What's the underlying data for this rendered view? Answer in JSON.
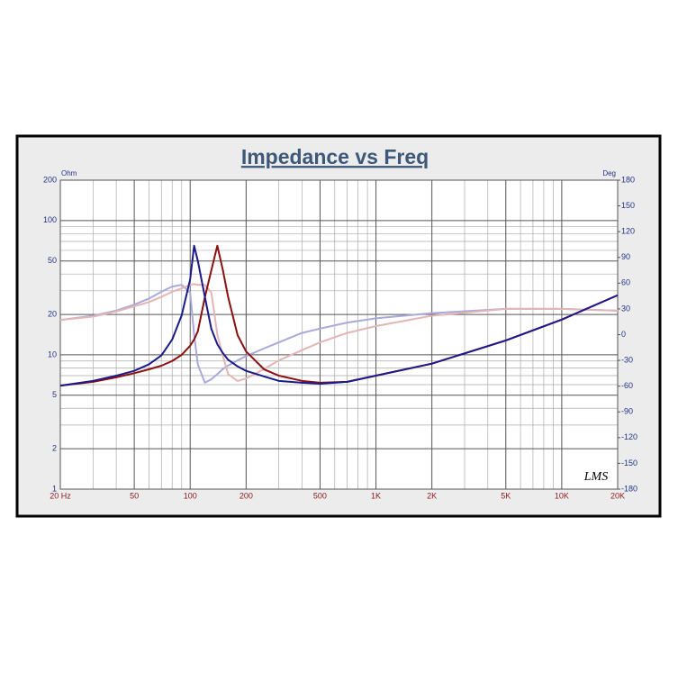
{
  "chart_data": {
    "type": "line",
    "title": "Impedance vs Freq",
    "y_label": "Ohm",
    "y2_label": "Deg",
    "logo": "LMS",
    "x_log": true,
    "y_log": true,
    "grid": true,
    "x": [
      20,
      30,
      40,
      50,
      60,
      70,
      80,
      90,
      100,
      105,
      110,
      120,
      130,
      140,
      150,
      160,
      180,
      200,
      250,
      300,
      400,
      500,
      700,
      1000,
      2000,
      5000,
      10000,
      20000
    ],
    "xlim": [
      20,
      20000
    ],
    "xticks": [
      {
        "value": 20,
        "label": "20 Hz"
      },
      50,
      100,
      200,
      500,
      {
        "value": 1000,
        "label": "1K"
      },
      {
        "value": 2000,
        "label": "2K"
      },
      {
        "value": 5000,
        "label": "5K"
      },
      {
        "value": 10000,
        "label": "10K"
      },
      {
        "value": 20000,
        "label": "20K"
      }
    ],
    "xminor": [
      30,
      40,
      60,
      70,
      80,
      90,
      300,
      400,
      600,
      700,
      800,
      900,
      3000,
      4000,
      6000,
      7000,
      8000,
      9000
    ],
    "ylim": [
      1,
      200
    ],
    "yticks": [
      1,
      2,
      5,
      10,
      20,
      50,
      100,
      200
    ],
    "yminor": [
      3,
      4,
      6,
      7,
      8,
      9,
      30,
      40,
      60,
      70,
      80,
      90
    ],
    "y2lim": [
      -180,
      180
    ],
    "y2ticks": [
      -180,
      -150,
      -120,
      -90,
      -60,
      -30,
      0,
      30,
      60,
      90,
      120,
      150,
      180
    ],
    "series": [
      {
        "color": "#a9a9dc",
        "axis": "y2",
        "values": [
          17,
          22,
          28,
          35,
          42,
          50,
          56,
          58,
          49,
          0,
          -35,
          -56,
          -52,
          -46,
          -40,
          -36,
          -30,
          -25,
          -16,
          -9,
          2,
          7,
          14,
          19,
          25,
          30,
          30,
          28
        ]
      },
      {
        "color": "#e3b5b5",
        "axis": "y2",
        "values": [
          17,
          21,
          27,
          33,
          38,
          44,
          50,
          54,
          58,
          59,
          58,
          58,
          49,
          0,
          -25,
          -46,
          -54,
          -51,
          -40,
          -30,
          -18,
          -9,
          2,
          10,
          22,
          30,
          30,
          28
        ]
      },
      {
        "color": "#8b1010",
        "values": [
          5.9,
          6.3,
          6.8,
          7.3,
          7.8,
          8.3,
          9.0,
          10,
          11.7,
          13,
          15,
          26.9,
          42.7,
          65,
          42.7,
          27,
          14,
          10.6,
          7.8,
          7.0,
          6.4,
          6.2,
          6.3,
          7.0,
          8.6,
          12.8,
          18.3,
          27.8
        ]
      },
      {
        "color": "#1a1a8c",
        "values": [
          5.9,
          6.4,
          7.0,
          7.6,
          8.5,
          9.9,
          13,
          19.7,
          36.6,
          65,
          50,
          27,
          15.6,
          12,
          10.3,
          9.2,
          8.2,
          7.6,
          6.9,
          6.4,
          6.2,
          6.1,
          6.3,
          7.0,
          8.6,
          12.8,
          18.3,
          27.8
        ]
      }
    ]
  }
}
